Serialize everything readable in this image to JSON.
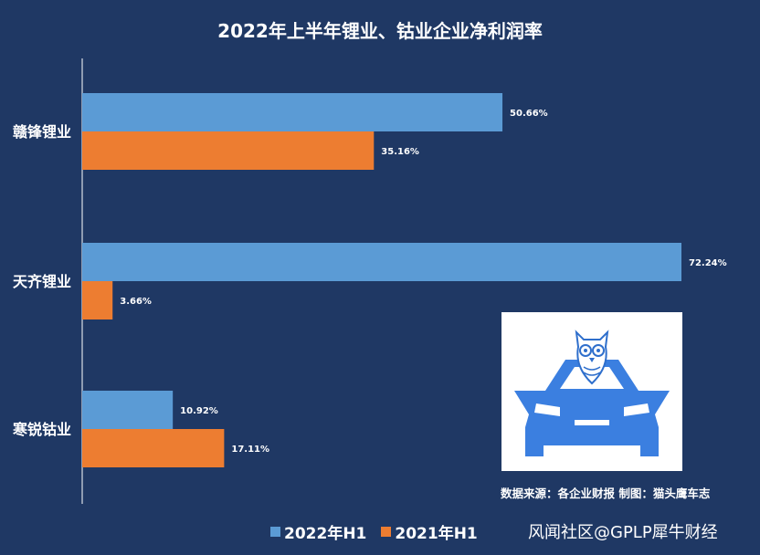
{
  "chart_data": {
    "type": "bar",
    "orientation": "horizontal",
    "title": "2022年上半年锂业、钴业企业净利润率",
    "categories": [
      "赣锋锂业",
      "天齐锂业",
      "寒锐钴业"
    ],
    "series": [
      {
        "name": "2022年H1",
        "values": [
          50.66,
          72.24,
          10.92
        ],
        "labels": [
          "50.66%",
          "72.24%",
          "10.92%"
        ],
        "color": "#5b9bd5"
      },
      {
        "name": "2021年H1",
        "values": [
          35.16,
          3.66,
          17.11
        ],
        "labels": [
          "35.16%",
          "3.66%",
          "17.11%"
        ],
        "color": "#ed7d31"
      }
    ],
    "xlim": [
      0,
      72.24
    ],
    "grid": false,
    "legend_position": "bottom"
  },
  "source_text": "数据来源：各企业财报  制图：猫头鹰车志",
  "watermark": "风闻社区@GPLP犀牛财经",
  "logo_icon": "owl-on-car-logo",
  "colors": {
    "background": "#1f3864",
    "text": "#ffffff",
    "logo_blue": "#3b7fe0"
  }
}
